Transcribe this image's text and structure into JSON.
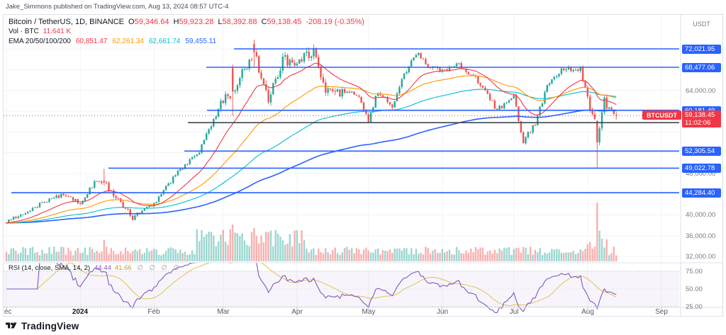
{
  "attribution": "Jake_Simmons published on TradingView.com, Aug 13, 2024 08:57 UTC-4",
  "legend": {
    "symbol_title": "Bitcoin / TetherUS, 1D, BINANCE",
    "ohlc": [
      {
        "label": "O",
        "value": "59,346.64"
      },
      {
        "label": "H",
        "value": "59,923.28"
      },
      {
        "label": "L",
        "value": "58,392.88"
      },
      {
        "label": "C",
        "value": "59,138.45"
      }
    ],
    "change": "-208.19 (-0.35%)",
    "volume": {
      "label": "Vol · BTC",
      "value": "11.641 K"
    },
    "ema": {
      "label": "EMA 20/50/100/200",
      "values": [
        {
          "text": "60,851.47",
          "color": "#f23645"
        },
        {
          "text": "62,261.34",
          "color": "#ff9800"
        },
        {
          "text": "62,661.74",
          "color": "#00bcd4"
        },
        {
          "text": "59,455.11",
          "color": "#2962ff"
        }
      ]
    }
  },
  "right_axis": {
    "currency": "USDT",
    "plain_labels": [
      {
        "text": "64,000.00",
        "price": 64000
      },
      {
        "text": "48,000.00",
        "price": 48000
      },
      {
        "text": "40,000.00",
        "price": 40000
      },
      {
        "text": "36,000.00",
        "price": 36000
      },
      {
        "text": "32,000.00",
        "price": 32000
      }
    ],
    "level_labels": [
      {
        "text": "72,021.95",
        "price": 72021.95,
        "style": "blue"
      },
      {
        "text": "68,477.06",
        "price": 68477.06,
        "style": "blue"
      },
      {
        "text": "60,181.49",
        "price": 60181.49,
        "style": "blue"
      },
      {
        "text": "57,790.95",
        "price": 57790.95,
        "style": "dark"
      },
      {
        "text": "52,305.54",
        "price": 52305.54,
        "style": "blue"
      },
      {
        "text": "49,022.78",
        "price": 49022.78,
        "style": "blue"
      },
      {
        "text": "44,284.40",
        "price": 44284.4,
        "style": "blue"
      }
    ],
    "current": {
      "symbol_badge": "BTCUSDT",
      "price_text": "59,138.45",
      "countdown": "11:02:06",
      "price": 59138.45
    }
  },
  "rsi_panel": {
    "legend": "RSI (14, close, SMA, 14, 2)",
    "value": "44.44",
    "sma_value": "41.66",
    "empty_slots": "∅ ∅ ∅ ∅",
    "axis_labels": [
      {
        "text": "75.00",
        "v": 75
      },
      {
        "text": "50.00",
        "v": 50
      },
      {
        "text": "25.00",
        "v": 25
      }
    ]
  },
  "time_axis": [
    {
      "label": "ec",
      "day": 0
    },
    {
      "label": "2024",
      "day": 31,
      "strong": true
    },
    {
      "label": "Feb",
      "day": 62
    },
    {
      "label": "Mar",
      "day": 91
    },
    {
      "label": "Apr",
      "day": 122
    },
    {
      "label": "May",
      "day": 152
    },
    {
      "label": "Jun",
      "day": 183
    },
    {
      "label": "Jul",
      "day": 213
    },
    {
      "label": "Aug",
      "day": 244
    },
    {
      "label": "Sep",
      "day": 275
    }
  ],
  "footer": {
    "brand": "TradingView"
  },
  "colors": {
    "up": "#26a69a",
    "down": "#ef5350",
    "level_blue": "#2962ff",
    "current_red": "#f23645",
    "dark_badge": "#363a45",
    "rsi": "#7e57c2",
    "rsi_sma": "#e3c14f",
    "grid": "#f0f3fa",
    "border": "#dde0e8",
    "text_muted": "#787b86",
    "text_dark": "#131722"
  },
  "chart_data": {
    "type": "candlestick",
    "symbol": "BINANCE:BTCUSDT",
    "timeframe": "1D",
    "date_range": [
      "2023-12-01",
      "2024-08-13"
    ],
    "ylim": [
      30500,
      75500
    ],
    "rsi_ylim": [
      0,
      100
    ],
    "last_candle": {
      "open": 59346.64,
      "high": 59923.28,
      "low": 58392.88,
      "close": 59138.45,
      "volume_label": "11.641 K"
    },
    "ema_last_values": {
      "ema20": 60851.47,
      "ema50": 62261.34,
      "ema100": 62661.74,
      "ema200": 59455.11
    },
    "rsi_last_values": {
      "rsi": 44.44,
      "rsi_sma": 41.66
    },
    "price_anchors": [
      [
        0,
        38700
      ],
      [
        8,
        40500
      ],
      [
        16,
        42600
      ],
      [
        24,
        43900
      ],
      [
        31,
        42300
      ],
      [
        38,
        46900
      ],
      [
        41,
        46300
      ],
      [
        47,
        42800
      ],
      [
        53,
        39500
      ],
      [
        62,
        42200
      ],
      [
        71,
        47700
      ],
      [
        81,
        52200
      ],
      [
        90,
        61400
      ],
      [
        95,
        63800
      ],
      [
        100,
        68500
      ],
      [
        104,
        71400
      ],
      [
        110,
        62500
      ],
      [
        116,
        69900
      ],
      [
        122,
        69700
      ],
      [
        129,
        71600
      ],
      [
        134,
        63900
      ],
      [
        140,
        63800
      ],
      [
        148,
        63100
      ],
      [
        152,
        58300
      ],
      [
        156,
        63900
      ],
      [
        162,
        60800
      ],
      [
        166,
        66200
      ],
      [
        172,
        71400
      ],
      [
        178,
        68400
      ],
      [
        183,
        67700
      ],
      [
        189,
        69300
      ],
      [
        197,
        66200
      ],
      [
        206,
        60300
      ],
      [
        210,
        61600
      ],
      [
        213,
        62800
      ],
      [
        217,
        54100
      ],
      [
        222,
        57700
      ],
      [
        227,
        64700
      ],
      [
        233,
        68100
      ],
      [
        241,
        68300
      ],
      [
        244,
        62300
      ],
      [
        247,
        58200
      ],
      [
        248,
        54000
      ],
      [
        251,
        61700
      ],
      [
        253,
        60900
      ],
      [
        255,
        59350
      ],
      [
        256,
        59138.45
      ]
    ],
    "candle_overrides": {
      "41": [
        46600,
        48900,
        45700,
        46300
      ],
      "95": [
        68300,
        69000,
        59100,
        63800
      ],
      "104": [
        73000,
        73800,
        68600,
        71400
      ],
      "248": [
        58100,
        58300,
        49100,
        54000
      ],
      "256": [
        59346.64,
        59923.28,
        58392.88,
        59138.45
      ]
    },
    "levels": [
      {
        "price": 72021.95,
        "x_start_frac": 0.341,
        "color": "#2962ff"
      },
      {
        "price": 68477.06,
        "x_start_frac": 0.3,
        "color": "#2962ff"
      },
      {
        "price": 60181.49,
        "x_start_frac": 0.301,
        "color": "#2962ff"
      },
      {
        "price": 57790.95,
        "x_start_frac": 0.273,
        "color": "#40464f"
      },
      {
        "price": 52305.54,
        "x_start_frac": 0.268,
        "color": "#2962ff"
      },
      {
        "price": 49022.78,
        "x_start_frac": 0.155,
        "color": "#2962ff"
      },
      {
        "price": 44284.4,
        "x_start_frac": 0.012,
        "color": "#2962ff"
      }
    ],
    "emas": [
      {
        "period": 20,
        "color": "#f23645"
      },
      {
        "period": 50,
        "color": "#ff9800"
      },
      {
        "period": 100,
        "color": "#00bcd4"
      },
      {
        "period": 200,
        "color": "#2962ff"
      }
    ],
    "rsi": {
      "period": 14,
      "sma": 14
    }
  }
}
